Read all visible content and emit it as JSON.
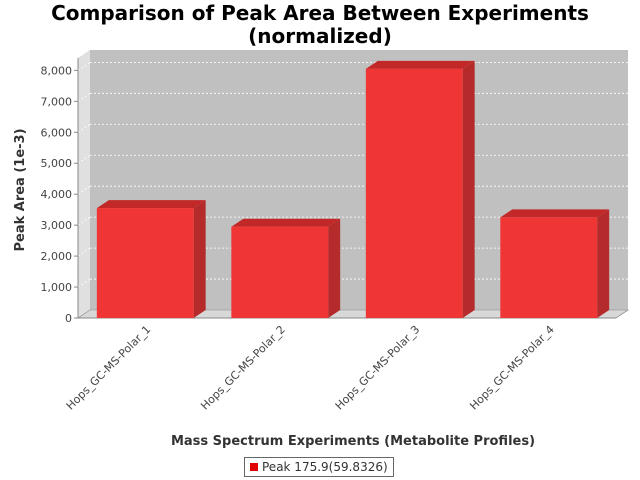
{
  "chart_data": {
    "type": "bar",
    "title_line1": "Comparison of Peak Area Between Experiments",
    "title_line2": "(normalized)",
    "xlabel": "Mass Spectrum Experiments (Metabolite Profiles)",
    "ylabel": "Peak Area (1e-3)",
    "categories": [
      "Hops_GC-MS-Polar_1",
      "Hops_GC-MS-Polar_2",
      "Hops_GC-MS-Polar_3",
      "Hops_GC-MS-Polar_4"
    ],
    "series": [
      {
        "name": "Peak 175.9(59.8326)",
        "values": [
          3550,
          2950,
          8050,
          3250
        ]
      }
    ],
    "ylim": [
      0,
      8400
    ],
    "yticks": [
      0,
      1000,
      2000,
      3000,
      4000,
      5000,
      6000,
      7000,
      8000
    ],
    "ytick_labels": [
      "0",
      "1,000",
      "2,000",
      "3,000",
      "4,000",
      "5,000",
      "6,000",
      "7,000",
      "8,000"
    ],
    "grid": true,
    "legend_position": "bottom",
    "colors": {
      "bar_front": "#f03535",
      "bar_top": "#c22828",
      "bar_side": "#b52a2a",
      "plot_back": "#c0c0c0",
      "plot_side": "#e0e0e0",
      "plot_floor": "#d8d8d8"
    }
  }
}
